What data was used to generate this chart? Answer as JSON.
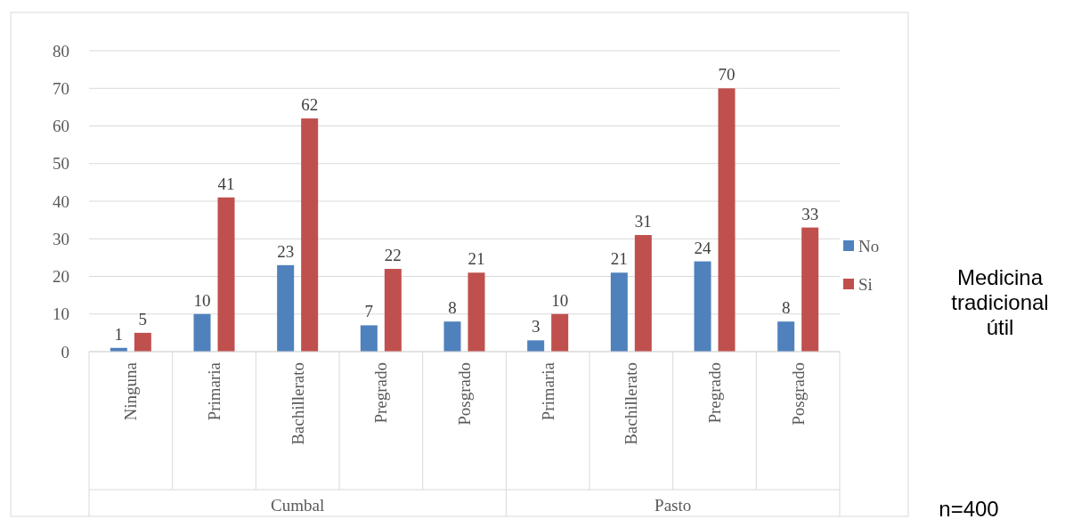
{
  "chart_data": {
    "type": "bar",
    "categories": [
      "Ninguna",
      "Primaria",
      "Bachillerato",
      "Pregrado",
      "Posgrado",
      "Primaria",
      "Bachillerato",
      "Pregrado",
      "Posgrado"
    ],
    "series": [
      {
        "name": "No",
        "color": "#4f81bd",
        "values": [
          1,
          10,
          23,
          7,
          8,
          3,
          21,
          24,
          8
        ]
      },
      {
        "name": "Si",
        "color": "#c0504d",
        "values": [
          5,
          41,
          62,
          22,
          21,
          10,
          31,
          70,
          33
        ]
      }
    ],
    "ylim": [
      0,
      80
    ],
    "yticks": [
      0,
      10,
      20,
      30,
      40,
      50,
      60,
      70,
      80
    ],
    "grid": "y",
    "data_labels": true,
    "legend": "right",
    "legend_title": "Medicina tradicional útil",
    "annotations": [
      "Cumbal",
      "Pasto",
      "n=400"
    ]
  }
}
